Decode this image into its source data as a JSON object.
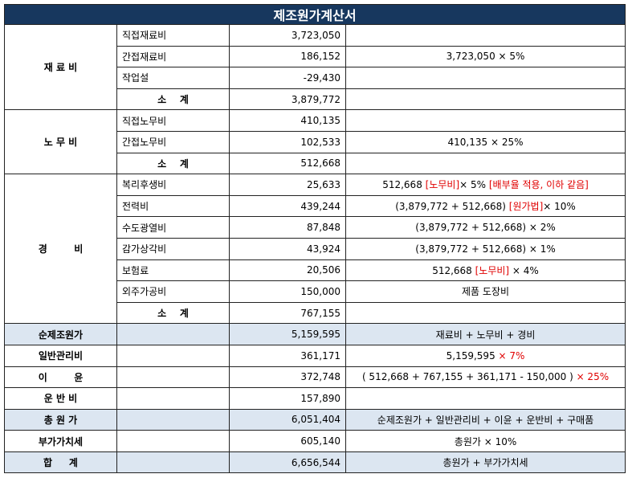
{
  "header": {
    "title": "제조원가계산서"
  },
  "groups": [
    {
      "label": "재 료 비",
      "rows": [
        {
          "item": "직접재료비",
          "amount": "3,723,050"
        },
        {
          "item": "간접재료비",
          "amount": "186,152",
          "note": [
            {
              "text": "3,723,050 × 5%"
            }
          ]
        },
        {
          "item": "작업설",
          "amount": "-29,430"
        },
        {
          "item": "소    계",
          "amount": "3,879,772",
          "subtotal": true
        }
      ]
    },
    {
      "label": "노 무 비",
      "rows": [
        {
          "item": "직접노무비",
          "amount": "410,135"
        },
        {
          "item": "간접노무비",
          "amount": "102,533",
          "note": [
            {
              "text": "410,135 × 25%"
            }
          ]
        },
        {
          "item": "소    계",
          "amount": "512,668",
          "subtotal": true
        }
      ]
    },
    {
      "label": "경        비",
      "rows": [
        {
          "item": "복리후생비",
          "amount": "25,633",
          "note": [
            {
              "text": "512,668 "
            },
            {
              "text": "[노무비]",
              "red": true
            },
            {
              "text": "× 5% "
            },
            {
              "text": "[배부율 적용, 이하 같음]",
              "red": true
            }
          ]
        },
        {
          "item": "전력비",
          "amount": "439,244",
          "note": [
            {
              "text": "(3,879,772 + 512,668) "
            },
            {
              "text": "[원가법]",
              "red": true
            },
            {
              "text": "× 10%"
            }
          ]
        },
        {
          "item": "수도광열비",
          "amount": "87,848",
          "note": [
            {
              "text": "(3,879,772 + 512,668) × 2%"
            }
          ]
        },
        {
          "item": "감가상각비",
          "amount": "43,924",
          "note": [
            {
              "text": "(3,879,772 + 512,668) × 1%"
            }
          ]
        },
        {
          "item": "보험료",
          "amount": "20,506",
          "note": [
            {
              "text": "512,668 "
            },
            {
              "text": "[노무비]",
              "red": true
            },
            {
              "text": " × 4%"
            }
          ]
        },
        {
          "item": "외주가공비",
          "amount": "150,000",
          "note": [
            {
              "text": "제품 도장비"
            }
          ]
        },
        {
          "item": "소    계",
          "amount": "767,155",
          "subtotal": true
        }
      ]
    }
  ],
  "summary": [
    {
      "label": "순제조원가",
      "amount": "5,159,595",
      "note": [
        {
          "text": "재료비 + 노무비 + 경비"
        }
      ],
      "highlight": true
    },
    {
      "label": "일반관리비",
      "amount": "361,171",
      "note": [
        {
          "text": "5,159,595 "
        },
        {
          "text": "× 7%",
          "red": true
        }
      ]
    },
    {
      "label": "이        윤",
      "amount": "372,748",
      "note": [
        {
          "text": "( 512,668 + 767,155 + 361,171 - 150,000 ) "
        },
        {
          "text": "× 25%",
          "red": true
        }
      ]
    },
    {
      "label": "운 반 비",
      "amount": "157,890"
    },
    {
      "label": "총 원 가",
      "amount": "6,051,404",
      "note": [
        {
          "text": "순제조원가 + 일반관리비 + 이윤 + 운반비 + 구매품"
        }
      ],
      "highlight": true
    },
    {
      "label": "부가가치세",
      "amount": "605,140",
      "note": [
        {
          "text": "총원가 × 10%"
        }
      ]
    },
    {
      "label": "합     계",
      "amount": "6,656,544",
      "note": [
        {
          "text": "총원가 + 부가가치세"
        }
      ],
      "highlight": true
    }
  ]
}
